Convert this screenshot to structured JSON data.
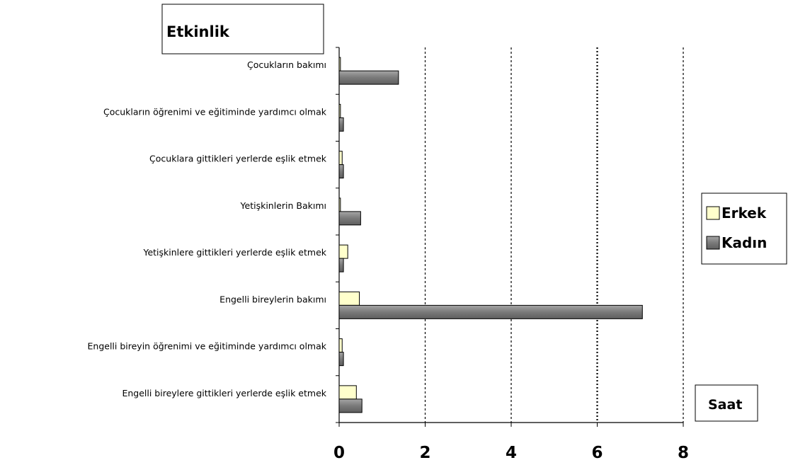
{
  "chart_data": {
    "type": "bar",
    "orientation": "horizontal",
    "title": "Etkinlik",
    "xlabel": "Saat",
    "ylabel": "",
    "xlim": [
      0,
      8
    ],
    "xticks": [
      0,
      2,
      4,
      6,
      8
    ],
    "grid": "vertical-dotted",
    "legend_position": "right",
    "categories": [
      "Çocukların bakımı",
      "Çocukların öğrenimi ve eğitiminde yardımcı olmak",
      "Çocuklara gittikleri yerlerde eşlik etmek",
      "Yetişkinlerin Bakımı",
      "Yetişkinlere gittikleri yerlerde eşlik etmek",
      "Engelli bireylerin bakımı",
      "Engelli bireyin öğrenimi ve eğitiminde yardımcı olmak",
      "Engelli bireylere gittikleri yerlerde eşlik etmek"
    ],
    "series": [
      {
        "name": "Erkek",
        "color": "#FFFFCC",
        "values": [
          0.03,
          0.03,
          0.07,
          0.03,
          0.2,
          0.47,
          0.07,
          0.4
        ]
      },
      {
        "name": "Kadın",
        "color": "#808080",
        "values": [
          1.38,
          0.1,
          0.1,
          0.5,
          0.1,
          7.05,
          0.1,
          0.53
        ]
      }
    ]
  }
}
